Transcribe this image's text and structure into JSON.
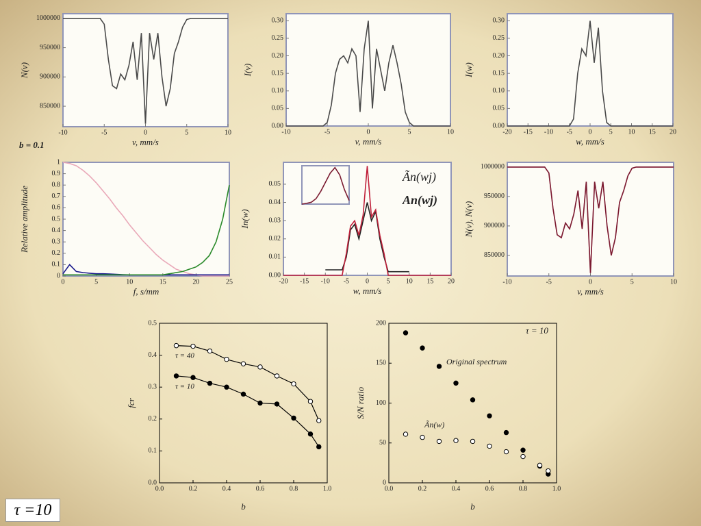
{
  "slide_label": "τ =10",
  "chart_data": [
    {
      "type": "line",
      "xlabel": "v, mm/s",
      "ylabel": "N(v)",
      "annotation": "b = 0.1",
      "xlim": [
        -10,
        10
      ],
      "ylim": [
        815000,
        1008000
      ],
      "xticks": [
        -10,
        -5,
        0,
        5,
        10
      ],
      "yticks": [
        850000,
        900000,
        950000,
        1000000
      ],
      "x": [
        -10,
        -9.5,
        -9,
        -8.5,
        -8,
        -7.5,
        -7,
        -6.5,
        -6,
        -5.5,
        -5,
        -4.5,
        -4,
        -3.5,
        -3,
        -2.5,
        -2,
        -1.5,
        -1,
        -0.5,
        0,
        0.5,
        1,
        1.5,
        2,
        2.5,
        3,
        3.5,
        4,
        4.5,
        5,
        5.5,
        6,
        6.5,
        7,
        7.5,
        8,
        8.5,
        9,
        9.5,
        10
      ],
      "series": [
        {
          "color": "#4a4a4a",
          "values": [
            1000000,
            1000000,
            1000000,
            1000000,
            1000000,
            1000000,
            1000000,
            1000000,
            1000000,
            1000000,
            990000,
            930000,
            885000,
            880000,
            905000,
            895000,
            920000,
            960000,
            895000,
            975000,
            820000,
            975000,
            930000,
            975000,
            900000,
            850000,
            880000,
            940000,
            960000,
            985000,
            998000,
            1000000,
            1000000,
            1000000,
            1000000,
            1000000,
            1000000,
            1000000,
            1000000,
            1000000,
            1000000
          ]
        }
      ]
    },
    {
      "type": "line",
      "xlabel": "v, mm/s",
      "ylabel": "I(v)",
      "xlim": [
        -10,
        10
      ],
      "ylim": [
        0,
        0.32
      ],
      "xticks": [
        -10,
        -5,
        0,
        5,
        10
      ],
      "yticks": [
        {
          "value": 0,
          "label": "0.00"
        },
        {
          "value": 0.05,
          "label": "0.05"
        },
        {
          "value": 0.1,
          "label": "0.10"
        },
        {
          "value": 0.15,
          "label": "0.15"
        },
        {
          "value": 0.2,
          "label": "0.20"
        },
        {
          "value": 0.25,
          "label": "0.25"
        },
        {
          "value": 0.3,
          "label": "0.30"
        }
      ],
      "x": [
        -10,
        -9.5,
        -9,
        -8.5,
        -8,
        -7.5,
        -7,
        -6.5,
        -6,
        -5.5,
        -5,
        -4.5,
        -4,
        -3.5,
        -3,
        -2.5,
        -2,
        -1.5,
        -1,
        -0.5,
        0,
        0.5,
        1,
        1.5,
        2,
        2.5,
        3,
        3.5,
        4,
        4.5,
        5,
        5.5,
        6,
        6.5,
        7,
        7.5,
        8,
        8.5,
        9,
        9.5,
        10
      ],
      "series": [
        {
          "color": "#4a4a4a",
          "values": [
            0,
            0,
            0,
            0,
            0,
            0,
            0,
            0,
            0,
            0,
            0.01,
            0.06,
            0.15,
            0.19,
            0.2,
            0.18,
            0.22,
            0.2,
            0.04,
            0.22,
            0.3,
            0.05,
            0.22,
            0.16,
            0.1,
            0.18,
            0.23,
            0.18,
            0.12,
            0.04,
            0.01,
            0,
            0,
            0,
            0,
            0,
            0,
            0,
            0,
            0,
            0
          ]
        }
      ]
    },
    {
      "type": "line",
      "xlabel": "w, mm/s",
      "ylabel": "I(w)",
      "xlim": [
        -20,
        20
      ],
      "ylim": [
        0,
        0.32
      ],
      "xticks": [
        -20,
        -15,
        -10,
        -5,
        0,
        5,
        10,
        15,
        20
      ],
      "yticks": [
        {
          "value": 0,
          "label": "0.00"
        },
        {
          "value": 0.05,
          "label": "0.05"
        },
        {
          "value": 0.1,
          "label": "0.10"
        },
        {
          "value": 0.15,
          "label": "0.15"
        },
        {
          "value": 0.2,
          "label": "0.20"
        },
        {
          "value": 0.25,
          "label": "0.25"
        },
        {
          "value": 0.3,
          "label": "0.30"
        }
      ],
      "x": [
        -20,
        -19,
        -18,
        -17,
        -16,
        -15,
        -14,
        -13,
        -12,
        -11,
        -10,
        -9,
        -8,
        -7,
        -6,
        -5,
        -4,
        -3,
        -2,
        -1,
        0,
        1,
        2,
        3,
        4,
        5,
        6,
        7,
        8,
        9,
        10,
        11,
        12,
        13,
        14,
        15,
        16,
        17,
        18,
        19,
        20
      ],
      "series": [
        {
          "color": "#4a4a4a",
          "values": [
            0,
            0,
            0,
            0,
            0,
            0,
            0,
            0,
            0,
            0,
            0,
            0,
            0,
            0,
            0,
            0,
            0.02,
            0.15,
            0.22,
            0.2,
            0.3,
            0.18,
            0.28,
            0.1,
            0.01,
            0,
            0,
            0,
            0,
            0,
            0,
            0,
            0,
            0,
            0,
            0,
            0,
            0,
            0,
            0,
            0
          ]
        }
      ]
    },
    {
      "type": "line",
      "xlabel": "f, s/mm",
      "ylabel": "Relative amplitude",
      "xlim": [
        0,
        25
      ],
      "ylim": [
        0,
        1
      ],
      "xticks": [
        0,
        5,
        10,
        15,
        20,
        25
      ],
      "yticks": [
        0,
        0.1,
        0.2,
        0.3,
        0.4,
        0.5,
        0.6,
        0.7,
        0.8,
        0.9,
        1
      ],
      "x": [
        0,
        1,
        2,
        3,
        4,
        5,
        6,
        7,
        8,
        9,
        10,
        11,
        12,
        13,
        14,
        15,
        16,
        17,
        18,
        19,
        20,
        21,
        22,
        23,
        24,
        25
      ],
      "series": [
        {
          "color": "#e9a8b8",
          "values": [
            1,
            0.99,
            0.97,
            0.93,
            0.88,
            0.82,
            0.75,
            0.68,
            0.6,
            0.53,
            0.45,
            0.38,
            0.31,
            0.25,
            0.19,
            0.14,
            0.1,
            0.06,
            0.04,
            0.02,
            0.01,
            0,
            0,
            0,
            0,
            0
          ]
        },
        {
          "color": "#1a1a8c",
          "values": [
            0.02,
            0.1,
            0.04,
            0.03,
            0.025,
            0.02,
            0.02,
            0.018,
            0.015,
            0.012,
            0.01,
            0.01,
            0.01,
            0.01,
            0.01,
            0.01,
            0.01,
            0.01,
            0.01,
            0.01,
            0.01,
            0.01,
            0.01,
            0.01,
            0.01,
            0.01
          ]
        },
        {
          "color": "#2a8a2a",
          "values": [
            0.01,
            0.01,
            0.01,
            0.01,
            0.01,
            0.01,
            0.01,
            0.01,
            0.01,
            0.01,
            0.01,
            0.01,
            0.01,
            0.01,
            0.01,
            0.01,
            0.02,
            0.03,
            0.04,
            0.06,
            0.08,
            0.12,
            0.18,
            0.3,
            0.5,
            0.8
          ]
        }
      ]
    },
    {
      "type": "line",
      "xlabel": "w, mm/s",
      "ylabel": "In(w)",
      "xlim": [
        -20,
        20
      ],
      "ylim": [
        0,
        0.062
      ],
      "xticks": [
        -20,
        -15,
        -10,
        -5,
        0,
        5,
        10,
        15,
        20
      ],
      "yticks": [
        {
          "value": 0,
          "label": "0.00"
        },
        {
          "value": 0.01,
          "label": "0.01"
        },
        {
          "value": 0.02,
          "label": "0.02"
        },
        {
          "value": 0.03,
          "label": "0.03"
        },
        {
          "value": 0.04,
          "label": "0.04"
        },
        {
          "value": 0.05,
          "label": "0.05"
        }
      ],
      "x": [
        -20,
        -19,
        -18,
        -17,
        -16,
        -15,
        -14,
        -13,
        -12,
        -11,
        -10,
        -9,
        -8,
        -7,
        -6,
        -5,
        -4,
        -3,
        -2,
        -1,
        0,
        1,
        2,
        3,
        4,
        5,
        6,
        7,
        8,
        9,
        10,
        11,
        12,
        13,
        14,
        15,
        16,
        17,
        18,
        19,
        20
      ],
      "series": [
        {
          "name": "Ãn(wj)",
          "color": "#222222",
          "values": [
            null,
            null,
            null,
            null,
            null,
            null,
            null,
            null,
            null,
            null,
            0.003,
            0.003,
            0.003,
            0.003,
            0.003,
            0.01,
            0.025,
            0.028,
            0.02,
            0.03,
            0.04,
            0.03,
            0.035,
            0.02,
            0.01,
            0.002,
            0.002,
            0.002,
            0.002,
            0.002,
            0.002,
            null,
            null,
            null,
            null,
            null,
            null,
            null,
            null,
            null,
            null
          ]
        },
        {
          "name": "An(wj)",
          "color": "#c0203a",
          "values": [
            0,
            0,
            0,
            0,
            0,
            0,
            0,
            0,
            0,
            0,
            0,
            0,
            0,
            0,
            0,
            0.012,
            0.027,
            0.03,
            0.022,
            0.033,
            0.06,
            0.032,
            0.036,
            0.022,
            0.012,
            0,
            0,
            0,
            0,
            0,
            0,
            0,
            0,
            0,
            0,
            0,
            0,
            0,
            0,
            0,
            0
          ]
        }
      ]
    },
    {
      "type": "line",
      "xlabel": "v, mm/s",
      "ylabel": "N(v), N(v)",
      "xlim": [
        -10,
        10
      ],
      "ylim": [
        815000,
        1008000
      ],
      "xticks": [
        -10,
        -5,
        0,
        5,
        10
      ],
      "yticks": [
        850000,
        900000,
        950000,
        1000000
      ],
      "x": [
        -10,
        -9.5,
        -9,
        -8.5,
        -8,
        -7.5,
        -7,
        -6.5,
        -6,
        -5.5,
        -5,
        -4.5,
        -4,
        -3.5,
        -3,
        -2.5,
        -2,
        -1.5,
        -1,
        -0.5,
        0,
        0.5,
        1,
        1.5,
        2,
        2.5,
        3,
        3.5,
        4,
        4.5,
        5,
        5.5,
        6,
        6.5,
        7,
        7.5,
        8,
        8.5,
        9,
        9.5,
        10
      ],
      "series": [
        {
          "color": "#e9a0b4",
          "values": [
            1000000,
            1000000,
            1000000,
            1000000,
            1000000,
            1000000,
            1000000,
            1000000,
            1000000,
            1000000,
            990000,
            930000,
            885000,
            880000,
            905000,
            895000,
            920000,
            960000,
            895000,
            975000,
            820000,
            975000,
            930000,
            975000,
            900000,
            850000,
            880000,
            940000,
            960000,
            985000,
            998000,
            1000000,
            1000000,
            1000000,
            1000000,
            1000000,
            1000000,
            1000000,
            1000000,
            1000000,
            1000000
          ]
        },
        {
          "color": "#7a1a30",
          "values": [
            1000000,
            1000000,
            1000000,
            1000000,
            1000000,
            1000000,
            1000000,
            1000000,
            1000000,
            1000000,
            990000,
            930000,
            885000,
            880000,
            905000,
            895000,
            920000,
            960000,
            895000,
            975000,
            820000,
            975000,
            930000,
            975000,
            900000,
            850000,
            880000,
            940000,
            960000,
            985000,
            998000,
            1000000,
            1000000,
            1000000,
            1000000,
            1000000,
            1000000,
            1000000,
            1000000,
            1000000,
            1000000
          ]
        }
      ]
    },
    {
      "type": "line",
      "xlim": [
        0,
        10
      ],
      "ylim": [
        0,
        1.05
      ],
      "x": [
        0,
        1,
        2,
        3,
        4,
        5,
        6,
        7,
        8,
        9,
        10
      ],
      "series": [
        {
          "color": "#7a1a30",
          "values": [
            0,
            0.02,
            0.05,
            0.15,
            0.35,
            0.6,
            0.85,
            1,
            0.8,
            0.4,
            0.1
          ]
        }
      ]
    },
    {
      "type": "line",
      "xlabel": "b",
      "ylabel": "fcr",
      "xlim": [
        0,
        1
      ],
      "ylim": [
        0,
        0.5
      ],
      "xticks": [
        {
          "value": 0,
          "label": "0.0"
        },
        0.2,
        0.4,
        0.6,
        0.8,
        {
          "value": 1,
          "label": "1.0"
        }
      ],
      "yticks": [
        {
          "value": 0,
          "label": "0.0"
        },
        0.1,
        0.2,
        0.3,
        0.4,
        0.5
      ],
      "x": [
        0.1,
        0.2,
        0.3,
        0.4,
        0.5,
        0.6,
        0.7,
        0.8,
        0.9,
        0.95
      ],
      "series": [
        {
          "name": "τ = 40",
          "color": "#000000",
          "marker": "open",
          "values": [
            0.43,
            0.428,
            0.413,
            0.387,
            0.373,
            0.363,
            0.335,
            0.31,
            0.255,
            0.195
          ]
        },
        {
          "name": "τ = 10",
          "color": "#000000",
          "marker": "filled",
          "values": [
            0.335,
            0.33,
            0.312,
            0.3,
            0.278,
            0.25,
            0.247,
            0.203,
            0.153,
            0.113
          ]
        }
      ]
    },
    {
      "type": "scatter",
      "xlabel": "b",
      "ylabel": "S/N ratio",
      "annotation": "τ = 10",
      "xlim": [
        0,
        1
      ],
      "ylim": [
        0,
        200
      ],
      "xticks": [
        {
          "value": 0,
          "label": "0.0"
        },
        0.2,
        0.4,
        0.6,
        0.8,
        {
          "value": 1,
          "label": "1.0"
        }
      ],
      "yticks": [
        0,
        50,
        100,
        150,
        200
      ],
      "x": [
        0.1,
        0.2,
        0.3,
        0.4,
        0.5,
        0.6,
        0.7,
        0.8,
        0.9,
        0.95
      ],
      "series": [
        {
          "name": "Original spectrum",
          "color": "#000000",
          "marker": "filled",
          "values": [
            188,
            169,
            146,
            125,
            104,
            84,
            63,
            41,
            21,
            11
          ]
        },
        {
          "name": "Ãn(w)",
          "color": "#000000",
          "marker": "open",
          "values": [
            61,
            57,
            52,
            53,
            52,
            46,
            39,
            33,
            22,
            15
          ]
        }
      ]
    }
  ]
}
